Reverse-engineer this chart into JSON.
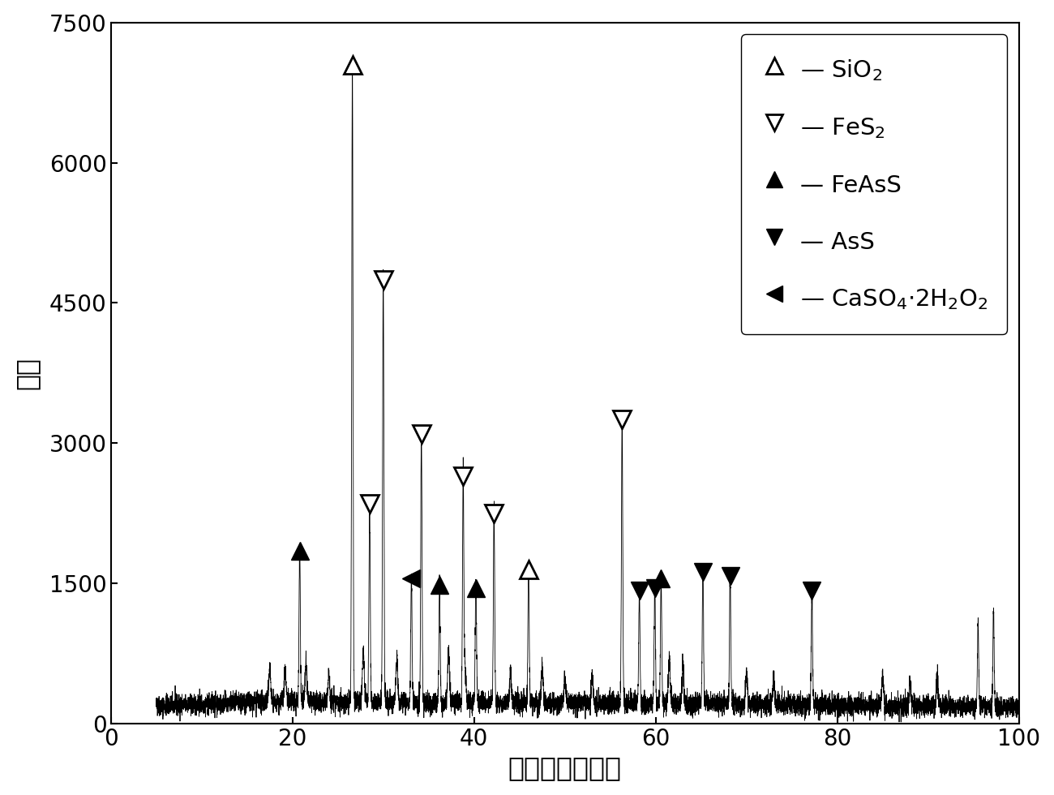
{
  "xlabel": "扫描角度（度）",
  "ylabel": "强度",
  "xlim": [
    0,
    100
  ],
  "ylim": [
    0,
    7500
  ],
  "yticks": [
    0,
    1500,
    3000,
    4500,
    6000,
    7500
  ],
  "xticks": [
    0,
    20,
    40,
    60,
    80,
    100
  ],
  "background_color": "#ffffff",
  "fontsize_labels": 24,
  "fontsize_ticks": 20,
  "fontsize_legend": 21,
  "peak_annotations": [
    {
      "x": 20.8,
      "y_marker": 1850,
      "mtype": "filled_up"
    },
    {
      "x": 26.6,
      "y_marker": 7050,
      "mtype": "open_up"
    },
    {
      "x": 28.5,
      "y_marker": 2350,
      "mtype": "open_down"
    },
    {
      "x": 30.0,
      "y_marker": 4750,
      "mtype": "open_down"
    },
    {
      "x": 33.1,
      "y_marker": 1550,
      "mtype": "filled_left"
    },
    {
      "x": 34.2,
      "y_marker": 3100,
      "mtype": "open_down"
    },
    {
      "x": 36.2,
      "y_marker": 1480,
      "mtype": "filled_up"
    },
    {
      "x": 38.8,
      "y_marker": 2650,
      "mtype": "open_down"
    },
    {
      "x": 40.2,
      "y_marker": 1450,
      "mtype": "filled_up"
    },
    {
      "x": 42.2,
      "y_marker": 2250,
      "mtype": "open_down"
    },
    {
      "x": 46.0,
      "y_marker": 1650,
      "mtype": "open_up"
    },
    {
      "x": 56.3,
      "y_marker": 3250,
      "mtype": "open_down"
    },
    {
      "x": 58.2,
      "y_marker": 1420,
      "mtype": "filled_down"
    },
    {
      "x": 59.9,
      "y_marker": 1450,
      "mtype": "filled_down"
    },
    {
      "x": 60.6,
      "y_marker": 1550,
      "mtype": "filled_up"
    },
    {
      "x": 65.2,
      "y_marker": 1620,
      "mtype": "filled_down"
    },
    {
      "x": 68.2,
      "y_marker": 1580,
      "mtype": "filled_down"
    },
    {
      "x": 77.2,
      "y_marker": 1420,
      "mtype": "filled_down"
    }
  ],
  "main_peaks": [
    [
      20.8,
      1650
    ],
    [
      26.6,
      6800
    ],
    [
      28.5,
      2100
    ],
    [
      30.0,
      4600
    ],
    [
      33.1,
      1350
    ],
    [
      34.2,
      2900
    ],
    [
      36.2,
      1280
    ],
    [
      38.8,
      2450
    ],
    [
      40.2,
      1280
    ],
    [
      42.2,
      2100
    ],
    [
      46.0,
      1400
    ],
    [
      56.3,
      3050
    ],
    [
      58.2,
      1200
    ],
    [
      59.9,
      1250
    ],
    [
      60.6,
      1350
    ],
    [
      65.2,
      1420
    ],
    [
      68.2,
      1350
    ],
    [
      77.2,
      1180
    ],
    [
      95.5,
      900
    ],
    [
      97.2,
      1050
    ]
  ],
  "small_peaks": [
    [
      17.5,
      380
    ],
    [
      19.2,
      320
    ],
    [
      21.5,
      400
    ],
    [
      24.0,
      280
    ],
    [
      27.8,
      550
    ],
    [
      31.5,
      480
    ],
    [
      37.2,
      550
    ],
    [
      39.0,
      380
    ],
    [
      44.0,
      320
    ],
    [
      47.5,
      380
    ],
    [
      50.0,
      280
    ],
    [
      53.0,
      320
    ],
    [
      61.5,
      480
    ],
    [
      63.0,
      380
    ],
    [
      70.0,
      320
    ],
    [
      73.0,
      280
    ],
    [
      85.0,
      280
    ],
    [
      88.0,
      230
    ],
    [
      91.0,
      320
    ]
  ]
}
